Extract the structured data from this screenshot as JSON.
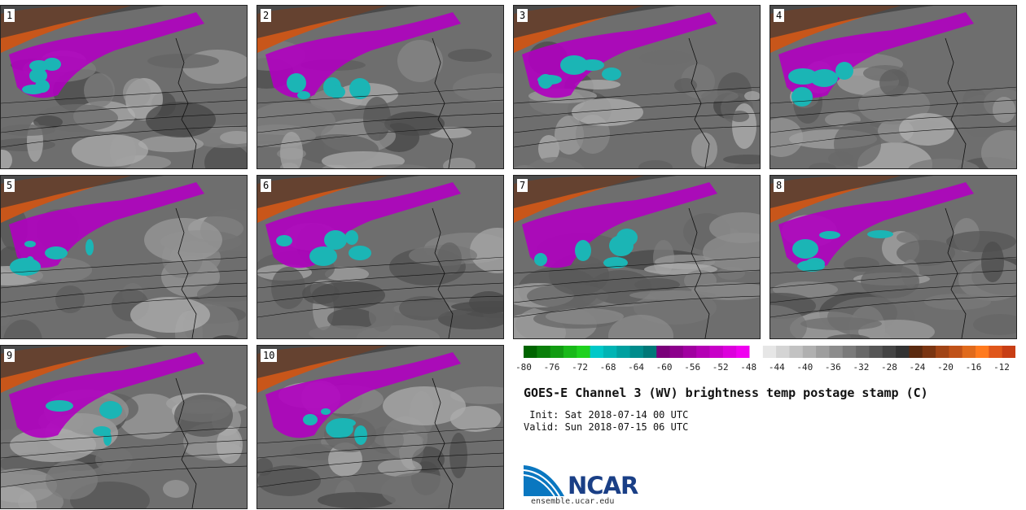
{
  "panels": [
    {
      "label": "1"
    },
    {
      "label": "2"
    },
    {
      "label": "3"
    },
    {
      "label": "4"
    },
    {
      "label": "5"
    },
    {
      "label": "6"
    },
    {
      "label": "7"
    },
    {
      "label": "8"
    },
    {
      "label": "9"
    },
    {
      "label": "10"
    }
  ],
  "colorbar": {
    "ticks": [
      "-80",
      "-76",
      "-72",
      "-68",
      "-64",
      "-60",
      "-56",
      "-52",
      "-48",
      "-44",
      "-40",
      "-36",
      "-32",
      "-28",
      "-24",
      "-20",
      "-16",
      "-12"
    ],
    "colors": [
      "#006400",
      "#0a7f0a",
      "#129c12",
      "#19b919",
      "#1fd11f",
      "#00c8c8",
      "#00b4b4",
      "#00a0a0",
      "#008c8c",
      "#007878",
      "#7a007a",
      "#8c008c",
      "#a000a0",
      "#b400b4",
      "#c800c8",
      "#dc00dc",
      "#f000f0",
      "#ffffff",
      "#e6e6e6",
      "#d4d4d4",
      "#c2c2c2",
      "#b0b0b0",
      "#9e9e9e",
      "#8c8c8c",
      "#7a7a7a",
      "#686868",
      "#565656",
      "#444444",
      "#333333",
      "#5a2a10",
      "#7a3512",
      "#a04416",
      "#c05218",
      "#e06a1c",
      "#ff7a1e",
      "#e0561a",
      "#c83e14"
    ]
  },
  "title": "GOES-E Channel 3 (WV) brightness temp postage stamp (C)",
  "init_label": " Init: Sat 2018-07-14 00 UTC",
  "valid_label": "Valid: Sun 2018-07-15 06 UTC",
  "logo": {
    "name": "NCAR",
    "url": "ensemble.ucar.edu"
  }
}
